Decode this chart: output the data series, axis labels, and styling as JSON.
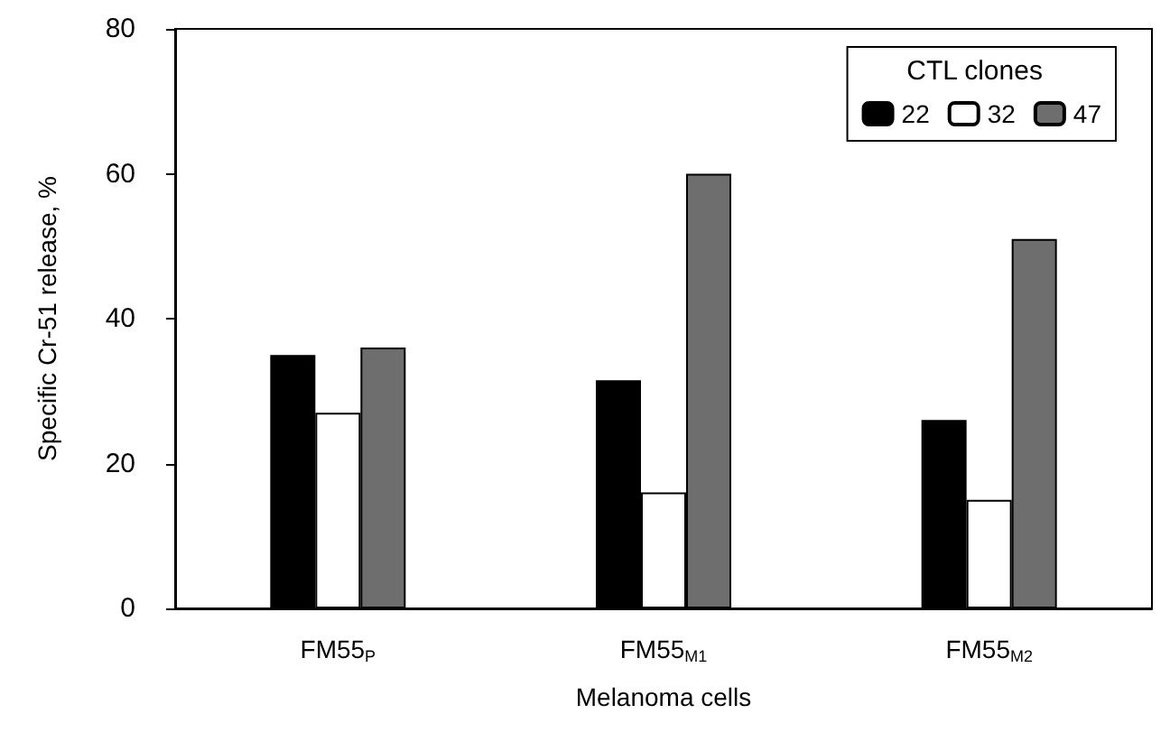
{
  "chart_data": {
    "type": "bar",
    "xlabel": "Melanoma cells",
    "ylabel": "Specific Cr-51 release, %",
    "legend_title": "CTL clones",
    "categories": [
      "FM55$_{P}$",
      "FM55$_{M1}$",
      "FM55$_{M2}$"
    ],
    "series": [
      {
        "name": "22",
        "color": "#000000",
        "values": [
          35,
          31.5,
          26
        ]
      },
      {
        "name": "32",
        "color": "#ffffff",
        "values": [
          27,
          16,
          15
        ]
      },
      {
        "name": "47",
        "color": "#6e6e6e",
        "values": [
          36,
          60,
          51
        ]
      }
    ],
    "ylim": [
      0,
      80
    ],
    "yticks": [
      0,
      20,
      40,
      60,
      80
    ],
    "grid": false,
    "legend": "top right"
  }
}
